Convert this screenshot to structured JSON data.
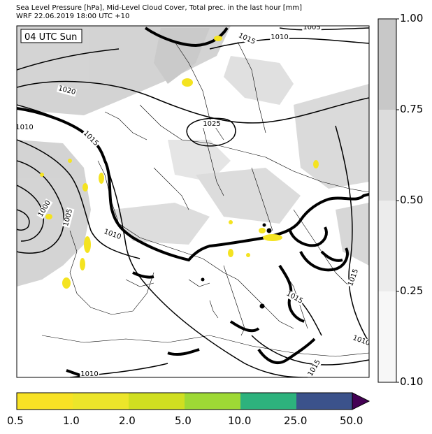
{
  "header": {
    "line1": "Sea Level Pressure [hPa], Mid-Level Cloud Cover, Total prec. in the last hour [mm]",
    "line2": "WRF 22.06.2019 18:00 UTC +10"
  },
  "map": {
    "time_label": "04 UTC Sun",
    "isobar_labels": [
      "1015",
      "1010",
      "1005",
      "1020",
      "1010",
      "1015",
      "1000",
      "1005",
      "1010",
      "1025",
      "1015",
      "1015",
      "1010",
      "1015",
      "1010"
    ]
  },
  "cloud_colorbar": {
    "ticks": [
      "1.00",
      "0.75",
      "0.50",
      "0.25",
      "0.10"
    ],
    "colors": [
      "#c8c8c8",
      "#dcdcdc",
      "#ececec",
      "#f7f7f7"
    ]
  },
  "precip_colorbar": {
    "ticks": [
      "0.5",
      "1.0",
      "2.0",
      "5.0",
      "10.0",
      "25.0",
      "50.0"
    ],
    "colors": [
      "#f8e225",
      "#ece52a",
      "#d0df21",
      "#9ed935",
      "#2db27d",
      "#3b528b",
      "#440154"
    ]
  }
}
